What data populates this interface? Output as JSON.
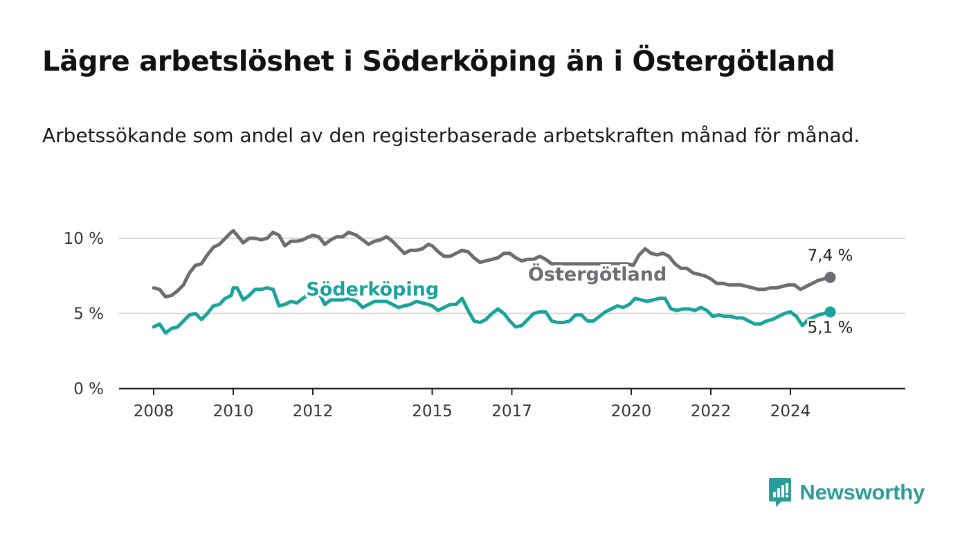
{
  "title": "Lägre arbetslöshet i Söderköping än i Östergötland",
  "subtitle": "Arbetssökande som andel av den registerbaserade arbetskraften månad för månad.",
  "brand": {
    "name": "Newsworthy",
    "color": "#2a9d9a",
    "icon": "newsworthy-logo-icon"
  },
  "chart_data": {
    "type": "line",
    "title": "Lägre arbetslöshet i Söderköping än i Östergötland",
    "subtitle": "Arbetssökande som andel av den registerbaserade arbetskraften månad för månad.",
    "xlabel": "",
    "ylabel": "",
    "ylim": [
      0,
      10
    ],
    "xlim": [
      2008.0,
      2026.0
    ],
    "grid": true,
    "legend": "inline labels",
    "y_ticks": [
      {
        "value": 0,
        "label": "0 %"
      },
      {
        "value": 5,
        "label": "5 %"
      },
      {
        "value": 10,
        "label": "10 %"
      }
    ],
    "x_ticks": [
      {
        "value": 2008,
        "label": "2008"
      },
      {
        "value": 2010,
        "label": "2010"
      },
      {
        "value": 2012,
        "label": "2012"
      },
      {
        "value": 2015,
        "label": "2015"
      },
      {
        "value": 2017,
        "label": "2017"
      },
      {
        "value": 2020,
        "label": "2020"
      },
      {
        "value": 2022,
        "label": "2022"
      },
      {
        "value": 2024,
        "label": "2024"
      }
    ],
    "series": [
      {
        "name": "Östergötland",
        "color": "#6e6c73",
        "end_label": "7,4 %",
        "x": [
          2008.0,
          2008.15,
          2008.3,
          2008.45,
          2008.6,
          2008.75,
          2008.9,
          2009.05,
          2009.2,
          2009.35,
          2009.5,
          2009.65,
          2009.8,
          2009.95,
          2010.0,
          2010.1,
          2010.25,
          2010.4,
          2010.55,
          2010.7,
          2010.85,
          2011.0,
          2011.15,
          2011.3,
          2011.45,
          2011.6,
          2011.75,
          2011.9,
          2012.0,
          2012.15,
          2012.3,
          2012.45,
          2012.6,
          2012.75,
          2012.9,
          2013.1,
          2013.25,
          2013.4,
          2013.55,
          2013.7,
          2013.85,
          2014.0,
          2014.15,
          2014.3,
          2014.45,
          2014.6,
          2014.75,
          2014.9,
          2015.0,
          2015.15,
          2015.3,
          2015.45,
          2015.6,
          2015.75,
          2015.9,
          2016.05,
          2016.2,
          2016.35,
          2016.5,
          2016.65,
          2016.8,
          2016.95,
          2017.1,
          2017.25,
          2017.4,
          2017.55,
          2017.7,
          2017.85,
          2018.0,
          2018.15,
          2019.9,
          2020.05,
          2020.2,
          2020.35,
          2020.5,
          2020.65,
          2020.8,
          2020.95,
          2021.1,
          2021.25,
          2021.4,
          2021.55,
          2021.7,
          2021.85,
          2022.0,
          2022.15,
          2022.3,
          2022.45,
          2022.6,
          2022.75,
          2022.9,
          2023.05,
          2023.2,
          2023.35,
          2023.5,
          2023.65,
          2023.8,
          2023.95,
          2024.1,
          2024.25,
          2024.4,
          2024.55,
          2024.7,
          2024.85,
          2025.0
        ],
        "values": [
          6.7,
          6.6,
          6.1,
          6.2,
          6.5,
          6.9,
          7.7,
          8.2,
          8.3,
          8.9,
          9.4,
          9.6,
          10.0,
          10.4,
          10.5,
          10.2,
          9.7,
          10.0,
          10.0,
          9.9,
          10.0,
          10.4,
          10.2,
          9.5,
          9.8,
          9.8,
          9.9,
          10.1,
          10.2,
          10.1,
          9.6,
          9.9,
          10.1,
          10.1,
          10.4,
          10.2,
          9.9,
          9.6,
          9.8,
          9.9,
          10.1,
          9.8,
          9.4,
          9.0,
          9.2,
          9.2,
          9.3,
          9.6,
          9.5,
          9.1,
          8.8,
          8.8,
          9.0,
          9.2,
          9.1,
          8.7,
          8.4,
          8.5,
          8.6,
          8.7,
          9.0,
          9.0,
          8.7,
          8.5,
          8.6,
          8.6,
          8.8,
          8.6,
          8.3,
          8.3,
          8.3,
          8.2,
          8.9,
          9.3,
          9.0,
          8.9,
          9.0,
          8.8,
          8.3,
          8.0,
          8.0,
          7.7,
          7.6,
          7.5,
          7.3,
          7.0,
          7.0,
          6.9,
          6.9,
          6.9,
          6.8,
          6.7,
          6.6,
          6.6,
          6.7,
          6.7,
          6.8,
          6.9,
          6.9,
          6.6,
          6.8,
          7.0,
          7.2,
          7.3,
          7.4
        ]
      },
      {
        "name": "Söderköping",
        "color": "#1aa39c",
        "end_label": "5,1 %",
        "x": [
          2008.0,
          2008.15,
          2008.3,
          2008.45,
          2008.6,
          2008.75,
          2008.9,
          2009.05,
          2009.2,
          2009.35,
          2009.5,
          2009.65,
          2009.8,
          2009.95,
          2010.0,
          2010.1,
          2010.25,
          2010.4,
          2010.55,
          2010.7,
          2010.85,
          2011.0,
          2011.15,
          2011.3,
          2011.45,
          2011.6,
          2011.75,
          2011.9,
          2012.0,
          2012.15,
          2012.3,
          2012.45,
          2012.6,
          2012.75,
          2012.9,
          2013.1,
          2013.25,
          2013.4,
          2013.55,
          2013.7,
          2013.85,
          2014.0,
          2014.15,
          2014.3,
          2014.45,
          2014.6,
          2014.75,
          2014.9,
          2015.0,
          2015.15,
          2015.3,
          2015.45,
          2015.6,
          2015.75,
          2015.9,
          2016.05,
          2016.2,
          2016.35,
          2016.5,
          2016.65,
          2016.8,
          2016.95,
          2017.1,
          2017.25,
          2017.4,
          2017.55,
          2017.7,
          2017.85,
          2018.0,
          2018.15,
          2018.3,
          2018.45,
          2018.6,
          2018.75,
          2018.9,
          2019.05,
          2019.2,
          2019.35,
          2019.5,
          2019.65,
          2019.8,
          2019.95,
          2020.1,
          2020.25,
          2020.4,
          2020.55,
          2020.7,
          2020.85,
          2021.0,
          2021.15,
          2021.3,
          2021.45,
          2021.6,
          2021.75,
          2021.9,
          2022.05,
          2022.2,
          2022.35,
          2022.5,
          2022.65,
          2022.8,
          2022.95,
          2023.1,
          2023.25,
          2023.4,
          2023.55,
          2023.7,
          2023.85,
          2024.0,
          2024.15,
          2024.3,
          2024.45,
          2024.7,
          2024.85,
          2025.0
        ],
        "values": [
          4.1,
          4.3,
          3.7,
          4.0,
          4.1,
          4.5,
          4.9,
          5.0,
          4.6,
          5.0,
          5.5,
          5.6,
          6.0,
          6.2,
          6.7,
          6.7,
          5.9,
          6.2,
          6.6,
          6.6,
          6.7,
          6.6,
          5.5,
          5.6,
          5.8,
          5.7,
          6.0,
          6.3,
          6.5,
          6.4,
          5.6,
          5.9,
          5.9,
          5.9,
          6.0,
          5.8,
          5.4,
          5.6,
          5.8,
          5.8,
          5.8,
          5.6,
          5.4,
          5.5,
          5.6,
          5.8,
          5.7,
          5.6,
          5.5,
          5.2,
          5.4,
          5.6,
          5.6,
          6.0,
          5.2,
          4.5,
          4.4,
          4.6,
          5.0,
          5.3,
          5.0,
          4.5,
          4.1,
          4.2,
          4.6,
          5.0,
          5.1,
          5.1,
          4.5,
          4.4,
          4.4,
          4.5,
          4.9,
          4.9,
          4.5,
          4.5,
          4.8,
          5.1,
          5.3,
          5.5,
          5.4,
          5.6,
          6.0,
          5.9,
          5.8,
          5.9,
          6.0,
          6.0,
          5.3,
          5.2,
          5.3,
          5.3,
          5.2,
          5.4,
          5.2,
          4.8,
          4.9,
          4.8,
          4.8,
          4.7,
          4.7,
          4.5,
          4.3,
          4.3,
          4.5,
          4.6,
          4.8,
          5.0,
          5.1,
          4.8,
          4.2,
          4.6,
          4.9,
          5.0,
          5.1
        ]
      }
    ],
    "inline_labels": [
      {
        "text": "Östergötland",
        "series": "Östergötland"
      },
      {
        "text": "Söderköping",
        "series": "Söderköping"
      }
    ]
  }
}
